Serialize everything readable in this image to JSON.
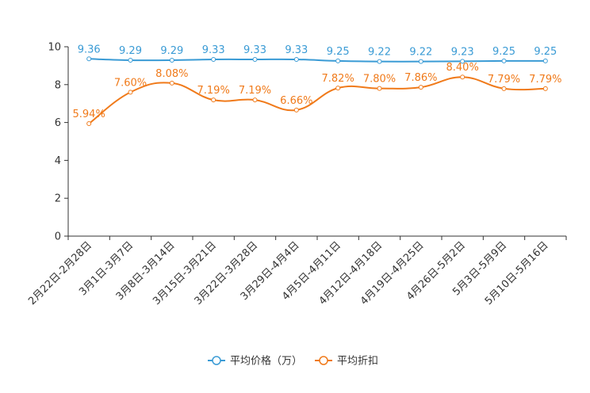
{
  "chart_data": {
    "type": "line",
    "title": "",
    "xlabel": "",
    "ylabel": "",
    "ylim": [
      0,
      10
    ],
    "yticks": [
      0,
      2,
      4,
      6,
      8,
      10
    ],
    "categories": [
      "2月22日-2月28日",
      "3月1日-3月7日",
      "3月8日-3月14日",
      "3月15日-3月21日",
      "3月22日-3月28日",
      "3月29日-4月4日",
      "4月5日-4月11日",
      "4月12日-4月18日",
      "4月19日-4月25日",
      "4月26日-5月2日",
      "5月3日-5月9日",
      "5月10日-5月16日"
    ],
    "series": [
      {
        "name": "平均价格（万）",
        "color": "#3a9bd5",
        "values": [
          9.36,
          9.29,
          9.29,
          9.33,
          9.33,
          9.33,
          9.25,
          9.22,
          9.22,
          9.23,
          9.25,
          9.25
        ],
        "labels": [
          "9.36",
          "9.29",
          "9.29",
          "9.33",
          "9.33",
          "9.33",
          "9.25",
          "9.22",
          "9.22",
          "9.23",
          "9.25",
          "9.25"
        ]
      },
      {
        "name": "平均折扣",
        "color": "#f07a1a",
        "values": [
          5.94,
          7.6,
          8.08,
          7.19,
          7.19,
          6.66,
          7.82,
          7.8,
          7.86,
          8.4,
          7.79,
          7.79
        ],
        "labels": [
          "5.94%",
          "7.60%",
          "8.08%",
          "7.19%",
          "7.19%",
          "6.66%",
          "7.82%",
          "7.80%",
          "7.86%",
          "8.40%",
          "7.79%",
          "7.79%"
        ]
      }
    ],
    "legend": "bottom-center",
    "grid": false
  }
}
